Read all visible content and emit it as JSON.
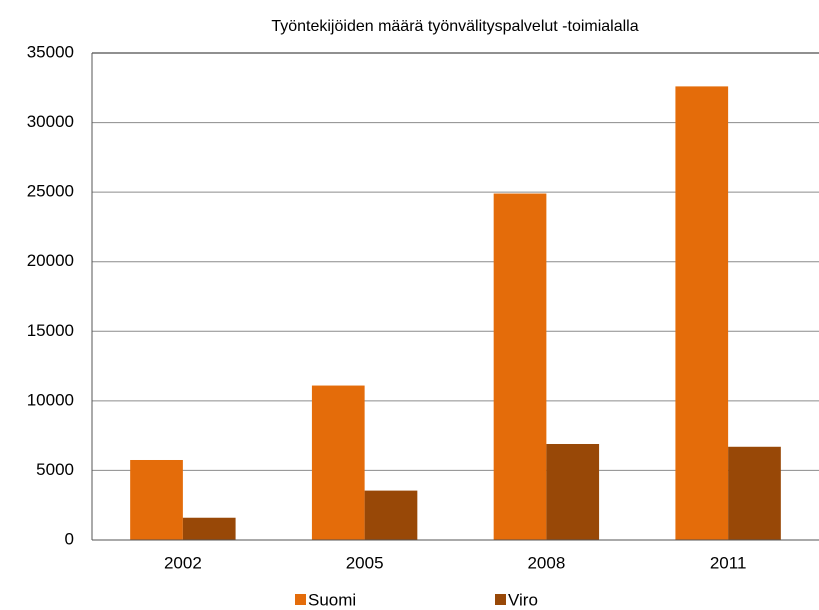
{
  "chart_data": {
    "type": "bar",
    "title": "Työntekijöiden määrä työnvälityspalvelut -toimialalla",
    "categories": [
      "2002",
      "2005",
      "2008",
      "2011"
    ],
    "series": [
      {
        "name": "Suomi",
        "color": "#e46c0a",
        "values": [
          5750,
          11100,
          24900,
          32600
        ]
      },
      {
        "name": "Viro",
        "color": "#984807",
        "values": [
          1600,
          3550,
          6900,
          6700
        ]
      }
    ],
    "ylim": [
      0,
      35000
    ],
    "yticks": [
      0,
      5000,
      10000,
      15000,
      20000,
      25000,
      30000,
      35000
    ],
    "grid": true,
    "legend": "bottom"
  }
}
